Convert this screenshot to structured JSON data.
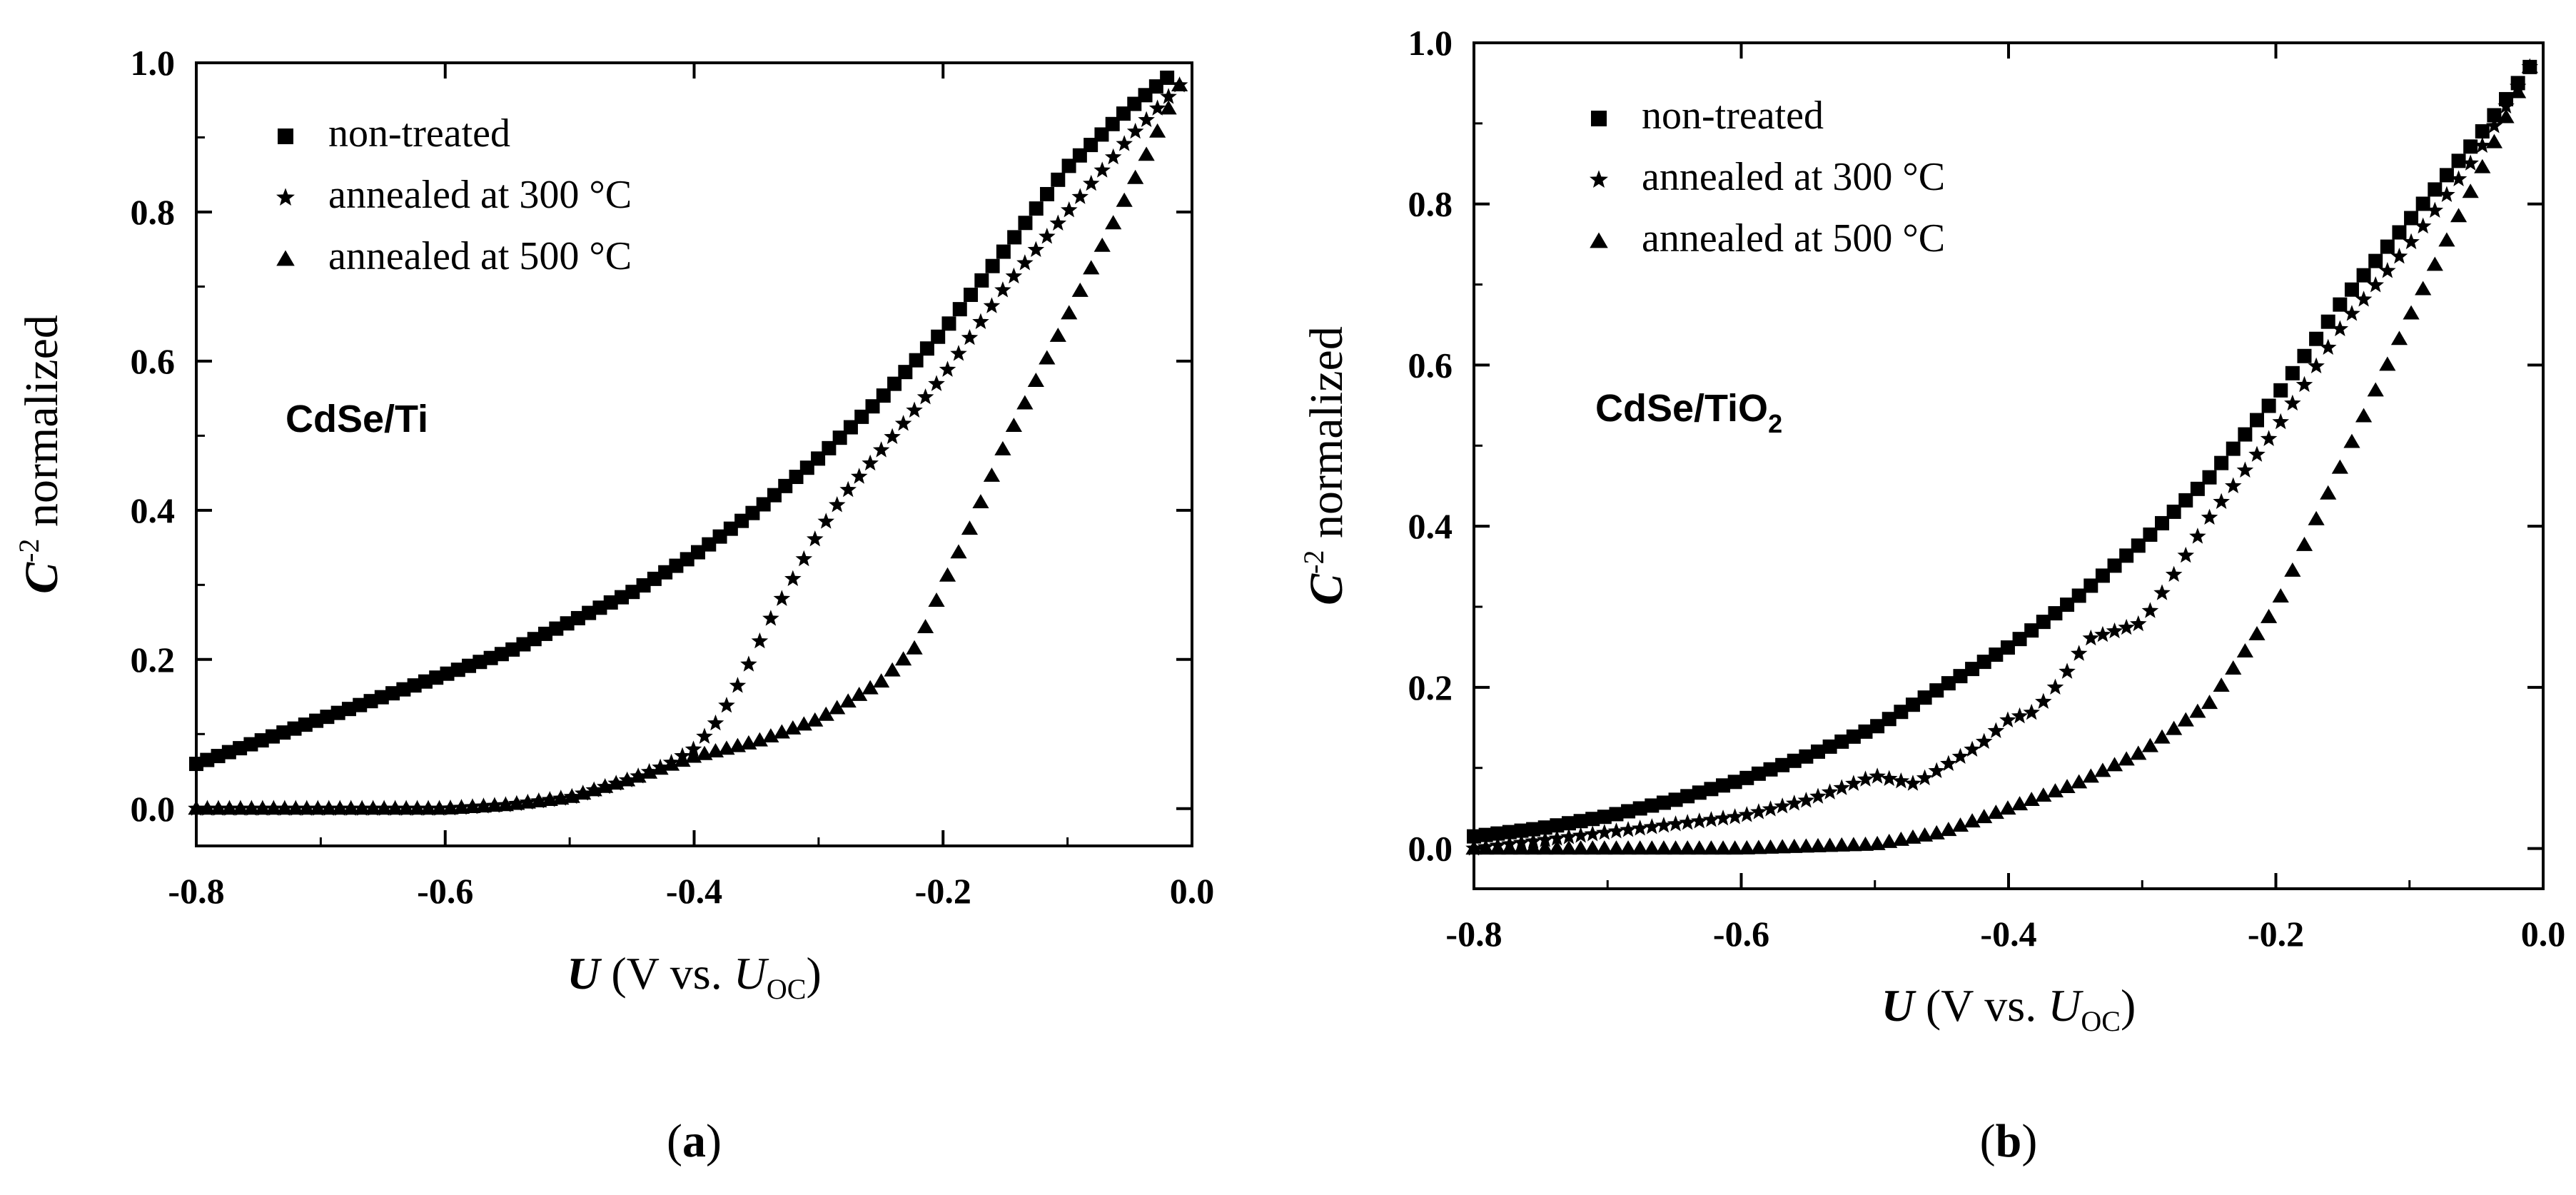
{
  "chart_data": [
    {
      "type": "scatter",
      "panel_label": "(a)",
      "inset_label": "CdSe/Ti",
      "xlabel": "U (V vs. U_OC)",
      "ylabel": "C^-2 normalized",
      "xlim": [
        -0.8,
        0.0
      ],
      "ylim": [
        -0.05,
        1.0
      ],
      "xticks": [
        -0.8,
        -0.6,
        -0.4,
        -0.2,
        0.0
      ],
      "yticks": [
        0.0,
        0.2,
        0.4,
        0.6,
        0.8,
        1.0
      ],
      "xtick_labels": [
        "-0.8",
        "-0.6",
        "-0.4",
        "-0.2",
        "0.0"
      ],
      "ytick_labels": [
        "0.0",
        "0.2",
        "0.4",
        "0.6",
        "0.8",
        "1.0"
      ],
      "legend": "top-left",
      "series": [
        {
          "name": "non-treated",
          "marker": "square",
          "x": [
            -0.8,
            -0.75,
            -0.7,
            -0.65,
            -0.6,
            -0.55,
            -0.5,
            -0.45,
            -0.4,
            -0.35,
            -0.3,
            -0.25,
            -0.2,
            -0.15,
            -0.1,
            -0.05,
            -0.02
          ],
          "y": [
            0.06,
            0.09,
            0.12,
            0.15,
            0.18,
            0.21,
            0.25,
            0.29,
            0.34,
            0.4,
            0.47,
            0.55,
            0.64,
            0.75,
            0.86,
            0.94,
            0.98
          ]
        },
        {
          "name": "annealed at 300 °C",
          "marker": "star",
          "x": [
            -0.8,
            -0.7,
            -0.6,
            -0.55,
            -0.5,
            -0.45,
            -0.42,
            -0.4,
            -0.38,
            -0.36,
            -0.34,
            -0.32,
            -0.3,
            -0.28,
            -0.25,
            -0.2,
            -0.15,
            -0.1,
            -0.05,
            -0.01
          ],
          "y": [
            0.0,
            0.0,
            0.0,
            0.005,
            0.015,
            0.04,
            0.06,
            0.08,
            0.12,
            0.18,
            0.25,
            0.31,
            0.37,
            0.42,
            0.48,
            0.58,
            0.7,
            0.8,
            0.9,
            0.97
          ]
        },
        {
          "name": "annealed at 500 °C",
          "marker": "triangle",
          "x": [
            -0.8,
            -0.7,
            -0.6,
            -0.55,
            -0.5,
            -0.45,
            -0.4,
            -0.35,
            -0.3,
            -0.25,
            -0.22,
            -0.2,
            -0.18,
            -0.15,
            -0.1,
            -0.05,
            -0.01
          ],
          "y": [
            0.0,
            0.0,
            0.0,
            0.005,
            0.015,
            0.04,
            0.07,
            0.09,
            0.12,
            0.17,
            0.22,
            0.3,
            0.37,
            0.49,
            0.66,
            0.83,
            0.97
          ]
        }
      ]
    },
    {
      "type": "scatter",
      "panel_label": "(b)",
      "inset_label": "CdSe/TiO2",
      "xlabel": "U (V vs. U_OC)",
      "ylabel": "C^-2 normalized",
      "xlim": [
        -0.8,
        0.0
      ],
      "ylim": [
        -0.05,
        1.0
      ],
      "xticks": [
        -0.8,
        -0.6,
        -0.4,
        -0.2,
        0.0
      ],
      "yticks": [
        0.0,
        0.2,
        0.4,
        0.6,
        0.8,
        1.0
      ],
      "xtick_labels": [
        "-0.8",
        "-0.6",
        "-0.4",
        "-0.2",
        "0.0"
      ],
      "ytick_labels": [
        "0.0",
        "0.2",
        "0.4",
        "0.6",
        "0.8",
        "1.0"
      ],
      "legend": "top-left",
      "series": [
        {
          "name": "non-treated",
          "marker": "square",
          "x": [
            -0.8,
            -0.75,
            -0.7,
            -0.65,
            -0.6,
            -0.55,
            -0.5,
            -0.45,
            -0.4,
            -0.35,
            -0.3,
            -0.25,
            -0.2,
            -0.15,
            -0.1,
            -0.05,
            -0.01
          ],
          "y": [
            0.015,
            0.025,
            0.04,
            0.06,
            0.085,
            0.115,
            0.15,
            0.2,
            0.25,
            0.31,
            0.38,
            0.46,
            0.56,
            0.68,
            0.78,
            0.88,
            0.97
          ]
        },
        {
          "name": "annealed at 300 °C",
          "marker": "star",
          "x": [
            -0.8,
            -0.75,
            -0.7,
            -0.65,
            -0.6,
            -0.55,
            -0.5,
            -0.47,
            -0.45,
            -0.42,
            -0.4,
            -0.38,
            -0.36,
            -0.34,
            -0.32,
            -0.3,
            -0.28,
            -0.25,
            -0.2,
            -0.15,
            -0.1,
            -0.05,
            -0.01
          ],
          "y": [
            0.0,
            0.01,
            0.02,
            0.03,
            0.04,
            0.06,
            0.09,
            0.08,
            0.1,
            0.13,
            0.16,
            0.17,
            0.21,
            0.26,
            0.27,
            0.28,
            0.33,
            0.41,
            0.52,
            0.65,
            0.75,
            0.86,
            0.97
          ]
        },
        {
          "name": "annealed at 500 °C",
          "marker": "triangle",
          "x": [
            -0.8,
            -0.7,
            -0.6,
            -0.5,
            -0.45,
            -0.4,
            -0.35,
            -0.3,
            -0.25,
            -0.2,
            -0.15,
            -0.1,
            -0.05,
            -0.01
          ],
          "y": [
            0.0,
            0.0,
            0.0,
            0.005,
            0.02,
            0.05,
            0.08,
            0.12,
            0.18,
            0.3,
            0.48,
            0.66,
            0.83,
            0.97
          ]
        }
      ]
    }
  ]
}
